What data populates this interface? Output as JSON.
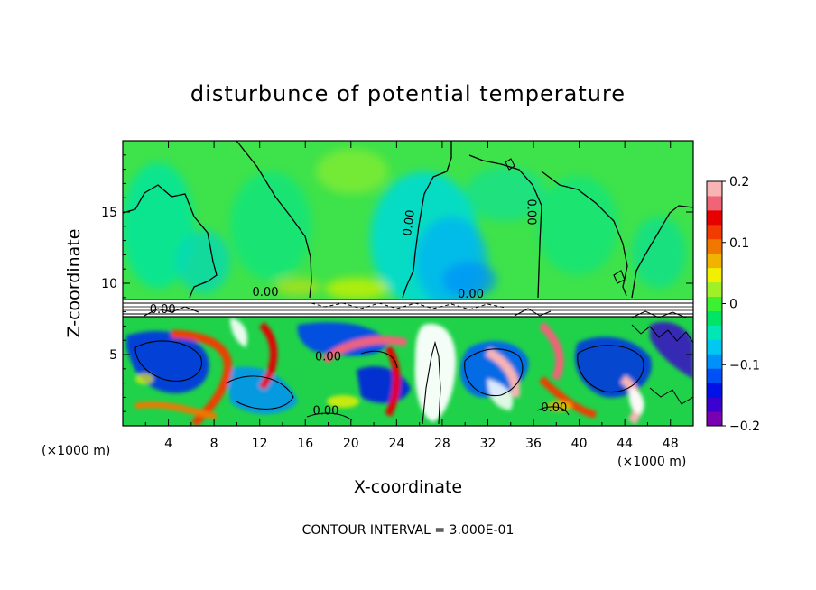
{
  "chart_data": {
    "type": "heatmap",
    "title": "disturbunce of potential temperature",
    "xlabel": "X-coordinate",
    "ylabel": "Z-coordinate",
    "x_unit_left": "(×1000 m)",
    "x_unit_right": "(×1000 m)",
    "footer": "CONTOUR INTERVAL = 3.000E-01",
    "xlim": [
      0,
      50
    ],
    "ylim": [
      0,
      20
    ],
    "x_ticks": [
      {
        "v": 4,
        "label": "4"
      },
      {
        "v": 8,
        "label": "8"
      },
      {
        "v": 12,
        "label": "12"
      },
      {
        "v": 16,
        "label": "16"
      },
      {
        "v": 20,
        "label": "20"
      },
      {
        "v": 24,
        "label": "24"
      },
      {
        "v": 28,
        "label": "28"
      },
      {
        "v": 32,
        "label": "32"
      },
      {
        "v": 36,
        "label": "36"
      },
      {
        "v": 40,
        "label": "40"
      },
      {
        "v": 44,
        "label": "44"
      },
      {
        "v": 48,
        "label": "48"
      }
    ],
    "y_ticks": [
      {
        "v": 5,
        "label": "5"
      },
      {
        "v": 10,
        "label": "10"
      },
      {
        "v": 15,
        "label": "15"
      }
    ],
    "colorbar": {
      "range": [
        -0.2,
        0.2
      ],
      "ticks": [
        {
          "v": 0.2,
          "label": "0.2"
        },
        {
          "v": 0.1,
          "label": "0.1"
        },
        {
          "v": 0,
          "label": "0"
        },
        {
          "v": -0.1,
          "label": "−0.1"
        },
        {
          "v": -0.2,
          "label": "−0.2"
        }
      ],
      "colors": [
        "#7a00b4",
        "#3c00d0",
        "#0012e6",
        "#0050f5",
        "#0090fa",
        "#00c8f0",
        "#00e6b4",
        "#00e664",
        "#3cf032",
        "#a0f028",
        "#f0f000",
        "#f0b400",
        "#f07800",
        "#f03c00",
        "#e60000",
        "#f06478",
        "#f8b4b4"
      ]
    },
    "contour_labels": [
      {
        "x": 25.4,
        "z": 14.2,
        "text": "0.00"
      },
      {
        "x": 35.5,
        "z": 15.0,
        "text": "0.00"
      },
      {
        "x": 12.5,
        "z": 9.1,
        "text": "0.00"
      },
      {
        "x": 30.5,
        "z": 9.0,
        "text": "0.00"
      },
      {
        "x": 3.5,
        "z": 7.9,
        "text": "0.00"
      },
      {
        "x": 18.0,
        "z": 4.6,
        "text": "0.00"
      },
      {
        "x": 17.8,
        "z": 0.8,
        "text": "0.00"
      },
      {
        "x": 37.8,
        "z": 1.0,
        "text": "0.00"
      }
    ]
  }
}
